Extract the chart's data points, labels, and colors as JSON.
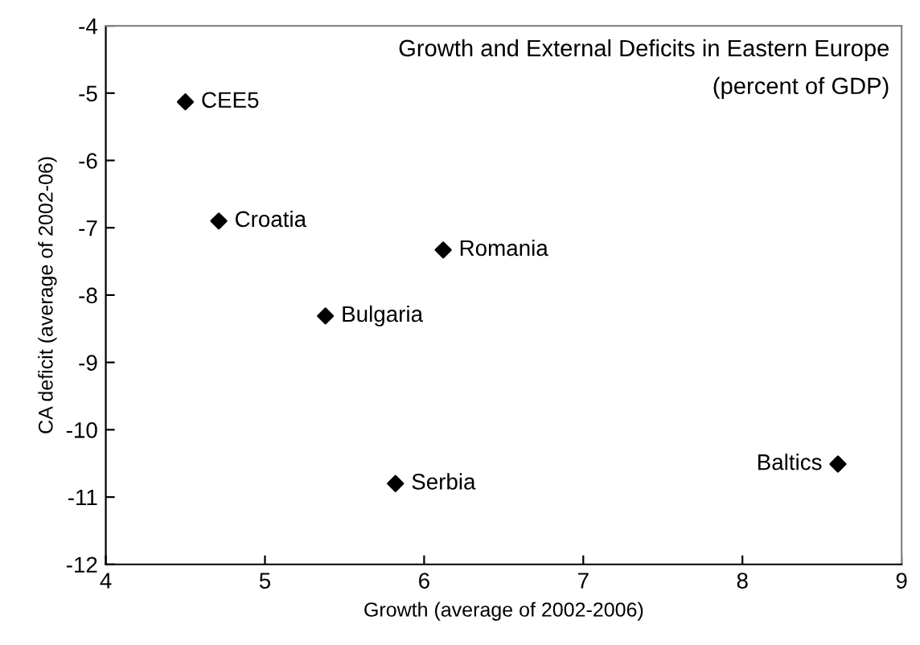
{
  "chart_data": {
    "type": "scatter",
    "title": "Growth and External Deficits in Eastern Europe",
    "subtitle": "(percent of GDP)",
    "xlabel": "Growth (average of 2002-2006)",
    "ylabel": "CA deficit (average of 2002-06)",
    "x": [
      4.5,
      4.71,
      5.38,
      6.12,
      5.82,
      8.6
    ],
    "values": [
      -5.13,
      -6.9,
      -8.31,
      -7.33,
      -10.8,
      -10.51
    ],
    "color": "#000000",
    "marker": "diamond",
    "annotations": [
      {
        "text": "CEE5",
        "x": 4.5,
        "y": -5.13
      },
      {
        "text": "Croatia",
        "x": 4.71,
        "y": -6.9
      },
      {
        "text": "Bulgaria",
        "x": 5.38,
        "y": -8.31
      },
      {
        "text": "Romania",
        "x": 6.12,
        "y": -7.33
      },
      {
        "text": "Serbia",
        "x": 5.82,
        "y": -10.8
      },
      {
        "text": "Baltics",
        "x": 8.6,
        "y": -10.51
      }
    ],
    "xlim": [
      4,
      9
    ],
    "xticks": [
      4,
      5,
      6,
      7,
      8,
      9
    ],
    "ylim": [
      -12,
      -4
    ],
    "yticks": [
      -12,
      -11,
      -10,
      -9,
      -8,
      -7,
      -6,
      -5,
      -4
    ],
    "grid": false
  }
}
